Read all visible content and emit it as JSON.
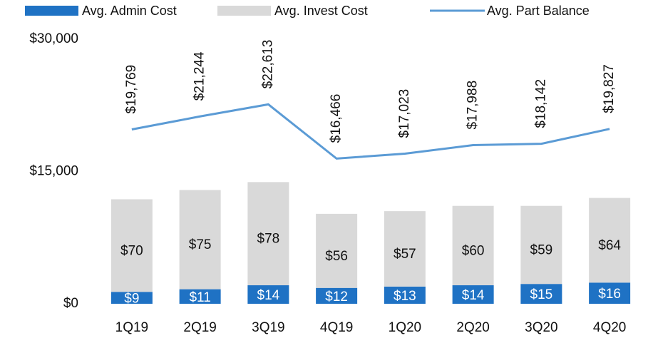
{
  "chart_data": {
    "type": "bar-line",
    "categories": [
      "1Q19",
      "2Q19",
      "3Q19",
      "4Q19",
      "1Q20",
      "2Q20",
      "3Q20",
      "4Q20"
    ],
    "series": [
      {
        "name": "Avg. Admin Cost",
        "type": "bar",
        "axis": "y2",
        "color": "#1f72c4",
        "values": [
          9,
          11,
          14,
          12,
          13,
          14,
          15,
          16
        ],
        "value_labels": [
          "$9",
          "$11",
          "$14",
          "$12",
          "$13",
          "$14",
          "$15",
          "$16"
        ]
      },
      {
        "name": "Avg. Invest Cost",
        "type": "bar",
        "axis": "y2",
        "color": "#d9d9d9",
        "values": [
          70,
          75,
          78,
          56,
          57,
          60,
          59,
          64
        ],
        "value_labels": [
          "$70",
          "$75",
          "$78",
          "$56",
          "$57",
          "$60",
          "$59",
          "$64"
        ]
      },
      {
        "name": "Avg. Part Balance",
        "type": "line",
        "color": "#5b9bd5",
        "values": [
          19769,
          21244,
          22613,
          16466,
          17023,
          17988,
          18142,
          19827
        ],
        "value_labels": [
          "$19,769",
          "$21,244",
          "$22,613",
          "$16,466",
          "$17,023",
          "$17,988",
          "$18,142",
          "$19,827"
        ]
      }
    ],
    "ylim": [
      0,
      30000
    ],
    "yticks": [
      {
        "value": 0,
        "label": "$0"
      },
      {
        "value": 15000,
        "label": "$15,000"
      },
      {
        "value": 30000,
        "label": "$30,000"
      }
    ],
    "y2lim": [
      0,
      200
    ],
    "stacked": true,
    "legend": "top"
  }
}
